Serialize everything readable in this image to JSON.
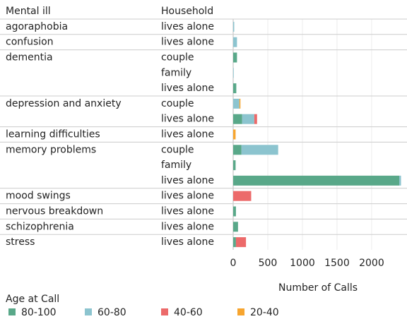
{
  "chart_data": {
    "type": "stacked-bar-horizontal",
    "row_header": "Mental ill",
    "category_header": "Household",
    "mental_ill": [
      "agoraphobia",
      "confusion",
      "dementia",
      null,
      null,
      "depression and anxiety",
      null,
      "learning difficulties",
      "memory problems",
      null,
      null,
      "mood swings",
      "nervous breakdown",
      "schizophrenia",
      "stress"
    ],
    "categories": [
      "lives alone",
      "lives alone",
      "couple",
      "family",
      "lives alone",
      "couple",
      "lives alone",
      "lives alone",
      "couple",
      "family",
      "lives alone",
      "lives alone",
      "lives alone",
      "lives alone",
      "lives alone"
    ],
    "series": [
      {
        "name": "80-100",
        "color": "#59a889",
        "values": [
          0,
          0,
          55,
          0,
          45,
          0,
          130,
          0,
          120,
          35,
          2400,
          0,
          40,
          70,
          40
        ]
      },
      {
        "name": "60-80",
        "color": "#8cc4cf",
        "values": [
          15,
          55,
          0,
          8,
          0,
          90,
          175,
          0,
          530,
          0,
          25,
          0,
          0,
          0,
          0
        ]
      },
      {
        "name": "40-60",
        "color": "#ec6a6a",
        "values": [
          0,
          0,
          0,
          0,
          0,
          0,
          40,
          0,
          0,
          0,
          0,
          260,
          0,
          0,
          145
        ]
      },
      {
        "name": "20-40",
        "color": "#f7a52f",
        "values": [
          0,
          0,
          0,
          0,
          0,
          15,
          0,
          35,
          0,
          0,
          0,
          0,
          0,
          0,
          0
        ]
      }
    ],
    "xlabel": "Number of Calls",
    "xlim": [
      0,
      2450
    ],
    "xticks": [
      0,
      500,
      1000,
      1500,
      2000
    ],
    "grid": true,
    "legend_title": "Age at Call"
  }
}
